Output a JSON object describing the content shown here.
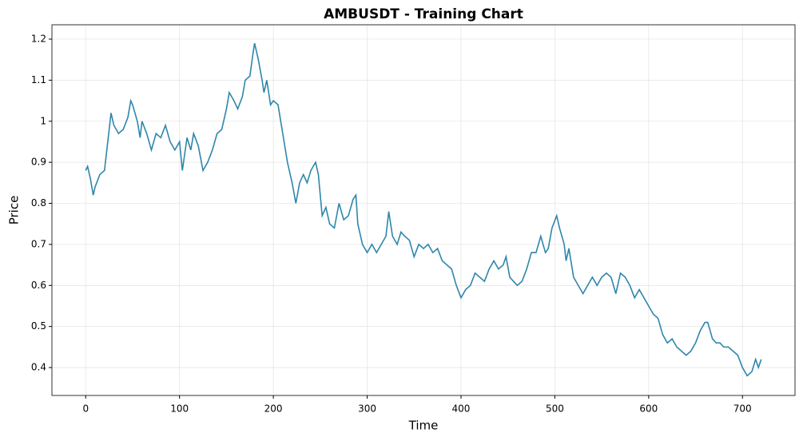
{
  "chart_data": {
    "type": "line",
    "title": "AMBUSDT - Training Chart",
    "xlabel": "Time",
    "ylabel": "Price",
    "x": [
      0,
      2,
      5,
      8,
      10,
      15,
      20,
      22,
      25,
      27,
      30,
      35,
      40,
      45,
      48,
      50,
      55,
      58,
      60,
      65,
      70,
      75,
      80,
      85,
      90,
      95,
      100,
      103,
      108,
      112,
      115,
      120,
      125,
      130,
      135,
      140,
      145,
      150,
      153,
      158,
      162,
      167,
      170,
      175,
      178,
      180,
      184,
      188,
      190,
      193,
      197,
      200,
      205,
      210,
      215,
      220,
      224,
      228,
      232,
      236,
      240,
      245,
      248,
      252,
      256,
      260,
      265,
      270,
      275,
      280,
      285,
      288,
      290,
      295,
      300,
      305,
      310,
      315,
      320,
      323,
      327,
      332,
      336,
      340,
      345,
      350,
      355,
      360,
      365,
      370,
      375,
      380,
      385,
      390,
      395,
      400,
      405,
      410,
      415,
      420,
      425,
      430,
      435,
      440,
      445,
      448,
      452,
      456,
      460,
      465,
      470,
      475,
      480,
      485,
      490,
      493,
      497,
      502,
      505,
      510,
      512,
      515,
      520,
      525,
      530,
      535,
      540,
      545,
      550,
      555,
      560,
      565,
      570,
      575,
      580,
      585,
      590,
      595,
      600,
      605,
      610,
      615,
      620,
      625,
      630,
      635,
      640,
      645,
      650,
      655,
      660,
      663,
      668,
      672,
      676,
      680,
      685,
      690,
      695,
      700,
      705,
      710,
      714,
      717,
      720
    ],
    "series": [
      {
        "name": "AMBUSDT",
        "color": "#2e86ab",
        "values": [
          0.88,
          0.89,
          0.86,
          0.82,
          0.84,
          0.87,
          0.88,
          0.92,
          0.98,
          1.02,
          0.99,
          0.97,
          0.98,
          1.01,
          1.05,
          1.04,
          1.0,
          0.96,
          1.0,
          0.97,
          0.93,
          0.97,
          0.96,
          0.99,
          0.95,
          0.93,
          0.95,
          0.88,
          0.96,
          0.93,
          0.97,
          0.94,
          0.88,
          0.9,
          0.93,
          0.97,
          0.98,
          1.03,
          1.07,
          1.05,
          1.03,
          1.06,
          1.1,
          1.11,
          1.16,
          1.19,
          1.15,
          1.1,
          1.07,
          1.1,
          1.04,
          1.05,
          1.04,
          0.97,
          0.9,
          0.85,
          0.8,
          0.85,
          0.87,
          0.85,
          0.88,
          0.9,
          0.87,
          0.77,
          0.79,
          0.75,
          0.74,
          0.8,
          0.76,
          0.77,
          0.81,
          0.82,
          0.75,
          0.7,
          0.68,
          0.7,
          0.68,
          0.7,
          0.72,
          0.78,
          0.72,
          0.7,
          0.73,
          0.72,
          0.71,
          0.67,
          0.7,
          0.69,
          0.7,
          0.68,
          0.69,
          0.66,
          0.65,
          0.64,
          0.6,
          0.57,
          0.59,
          0.6,
          0.63,
          0.62,
          0.61,
          0.64,
          0.66,
          0.64,
          0.65,
          0.67,
          0.62,
          0.61,
          0.6,
          0.61,
          0.64,
          0.68,
          0.68,
          0.72,
          0.68,
          0.69,
          0.74,
          0.77,
          0.74,
          0.7,
          0.66,
          0.69,
          0.62,
          0.6,
          0.58,
          0.6,
          0.62,
          0.6,
          0.62,
          0.63,
          0.62,
          0.58,
          0.63,
          0.62,
          0.6,
          0.57,
          0.59,
          0.57,
          0.55,
          0.53,
          0.52,
          0.48,
          0.46,
          0.47,
          0.45,
          0.44,
          0.43,
          0.44,
          0.46,
          0.49,
          0.51,
          0.51,
          0.47,
          0.46,
          0.46,
          0.45,
          0.45,
          0.44,
          0.43,
          0.4,
          0.38,
          0.39,
          0.42,
          0.4,
          0.42
        ]
      }
    ],
    "xlim": [
      -36,
      756
    ],
    "ylim": [
      0.332,
      1.235
    ],
    "xticks": [
      0,
      100,
      200,
      300,
      400,
      500,
      600,
      700
    ],
    "yticks": [
      0.4,
      0.5,
      0.6,
      0.7,
      0.8,
      0.9,
      1.0,
      1.1,
      1.2
    ],
    "grid": true
  }
}
